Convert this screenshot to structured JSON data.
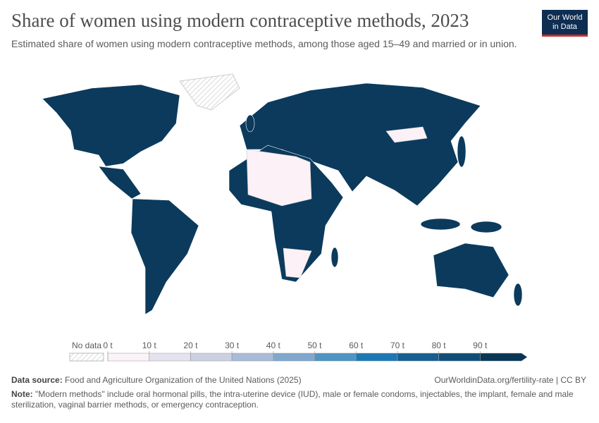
{
  "title": "Share of women using modern contraceptive methods, 2023",
  "subtitle": "Estimated share of women using modern contraceptive methods, among those aged 15–49 and married or in union.",
  "logo": [
    "Our World",
    "in Data"
  ],
  "legend": {
    "no_data": "No data",
    "ticks": [
      {
        "value": 0,
        "label": "0 t"
      },
      {
        "value": 10,
        "label": "10 t"
      },
      {
        "value": 20,
        "label": "20 t"
      },
      {
        "value": 30,
        "label": "30 t"
      },
      {
        "value": 40,
        "label": "40 t"
      },
      {
        "value": 50,
        "label": "50 t"
      },
      {
        "value": 60,
        "label": "60 t"
      },
      {
        "value": 70,
        "label": "70 t"
      },
      {
        "value": 80,
        "label": "80 t"
      },
      {
        "value": 90,
        "label": "90 t"
      }
    ],
    "colors": [
      "#fcf3f8",
      "#e4e2ef",
      "#cdd0e3",
      "#a9bbd8",
      "#80a8cf",
      "#4e94c5",
      "#1b78b4",
      "#155f93",
      "#0e4d78",
      "#083657"
    ]
  },
  "footer": {
    "source_label": "Data source:",
    "source": "Food and Agriculture Organization of the United Nations (2025)",
    "url": "OurWorldinData.org/fertility-rate | CC BY",
    "note_label": "Note:",
    "note": "\"Modern methods\" include oral hormonal pills, the intra-uterine device (IUD), male or female condoms, injectables, the implant, female and male sterilization, vaginal barrier methods, or emergency contraception."
  }
}
